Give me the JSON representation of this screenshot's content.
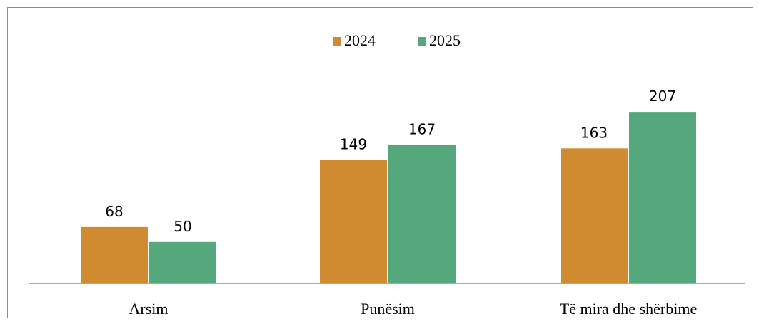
{
  "chart_data": {
    "type": "bar",
    "title": "",
    "xlabel": "",
    "ylabel": "",
    "categories": [
      "Arsim",
      "Punësim",
      "Të mira dhe shërbime"
    ],
    "series": [
      {
        "name": "2024",
        "color": "#d08a2f",
        "values": [
          68,
          149,
          163
        ]
      },
      {
        "name": "2025",
        "color": "#55a87c",
        "values": [
          50,
          167,
          207
        ]
      }
    ],
    "ylim": [
      0,
      300
    ],
    "grid": false,
    "legend": "top-center"
  }
}
